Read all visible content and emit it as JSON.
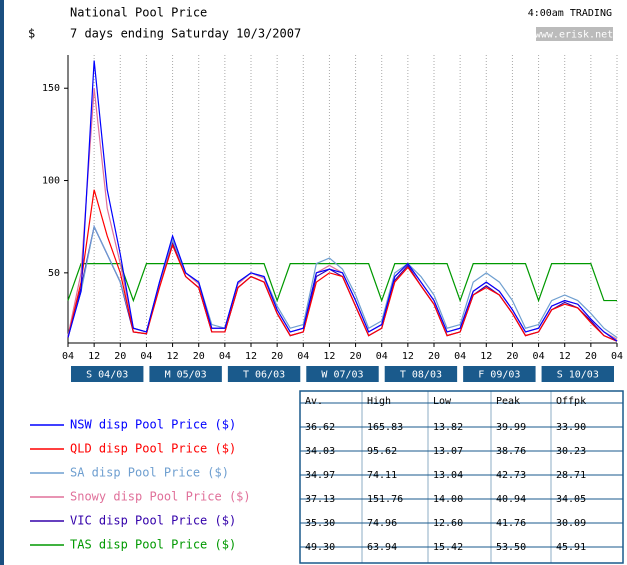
{
  "chart_data": {
    "type": "line",
    "title": "National Pool Price",
    "subtitle": "7 days ending Saturday 10/3/2007",
    "y_label": "$",
    "annotations": [
      "4:00am TRADING",
      "www.erisk.net"
    ],
    "x": [
      0,
      4,
      8,
      12,
      16,
      20,
      24,
      28,
      32,
      36,
      40,
      44,
      48,
      52,
      56,
      60,
      64,
      68,
      72,
      76,
      80,
      84,
      88,
      92,
      96,
      100,
      104,
      108,
      112,
      116,
      120,
      124,
      128,
      132,
      136,
      140,
      144,
      148,
      152,
      156,
      160,
      164,
      168
    ],
    "xlim": [
      0,
      168
    ],
    "xticks": [
      {
        "value": 0,
        "label": "04"
      },
      {
        "value": 8,
        "label": "12"
      },
      {
        "value": 16,
        "label": "20"
      },
      {
        "value": 24,
        "label": "04"
      },
      {
        "value": 32,
        "label": "12"
      },
      {
        "value": 40,
        "label": "20"
      },
      {
        "value": 48,
        "label": "04"
      },
      {
        "value": 56,
        "label": "12"
      },
      {
        "value": 64,
        "label": "20"
      },
      {
        "value": 72,
        "label": "04"
      },
      {
        "value": 80,
        "label": "12"
      },
      {
        "value": 88,
        "label": "20"
      },
      {
        "value": 96,
        "label": "04"
      },
      {
        "value": 104,
        "label": "12"
      },
      {
        "value": 112,
        "label": "20"
      },
      {
        "value": 120,
        "label": "04"
      },
      {
        "value": 128,
        "label": "12"
      },
      {
        "value": 136,
        "label": "20"
      },
      {
        "value": 144,
        "label": "04"
      },
      {
        "value": 152,
        "label": "12"
      },
      {
        "value": 160,
        "label": "20"
      },
      {
        "value": 168,
        "label": "04"
      }
    ],
    "day_labels": [
      "S 04/03",
      "M 05/03",
      "T 06/03",
      "W 07/03",
      "T 08/03",
      "F 09/03",
      "S 10/03"
    ],
    "ylim": [
      12,
      168
    ],
    "yticks": [
      50,
      100,
      150
    ],
    "grid": true,
    "series": [
      {
        "name": "NSW disp Pool Price ($)",
        "color": "#0000ff",
        "values": [
          15,
          40,
          165,
          95,
          60,
          20,
          18,
          45,
          70,
          50,
          45,
          20,
          20,
          45,
          50,
          48,
          30,
          18,
          20,
          50,
          52,
          50,
          35,
          18,
          22,
          48,
          55,
          45,
          35,
          18,
          20,
          40,
          45,
          40,
          30,
          18,
          20,
          32,
          35,
          33,
          25,
          18,
          13
        ]
      },
      {
        "name": "QLD disp Pool Price ($)",
        "color": "#ff0000",
        "values": [
          15,
          45,
          95,
          70,
          50,
          18,
          17,
          42,
          65,
          48,
          42,
          18,
          18,
          42,
          48,
          45,
          28,
          16,
          18,
          45,
          50,
          48,
          32,
          16,
          20,
          45,
          53,
          43,
          33,
          16,
          18,
          38,
          42,
          38,
          28,
          16,
          18,
          30,
          33,
          31,
          23,
          16,
          13
        ]
      },
      {
        "name": "SA disp Pool Price ($)",
        "color": "#6f9fd0",
        "values": [
          16,
          40,
          75,
          60,
          45,
          20,
          18,
          45,
          68,
          50,
          45,
          22,
          20,
          45,
          50,
          48,
          32,
          20,
          22,
          55,
          58,
          52,
          38,
          20,
          24,
          50,
          55,
          48,
          38,
          20,
          22,
          45,
          50,
          45,
          35,
          20,
          22,
          35,
          38,
          35,
          28,
          20,
          15
        ]
      },
      {
        "name": "Snowy disp Pool Price ($)",
        "color": "#e0709a",
        "values": [
          16,
          50,
          150,
          85,
          55,
          20,
          18,
          44,
          68,
          50,
          44,
          20,
          20,
          44,
          50,
          47,
          30,
          18,
          20,
          50,
          54,
          50,
          35,
          18,
          22,
          48,
          55,
          45,
          35,
          18,
          20,
          40,
          45,
          40,
          30,
          18,
          20,
          32,
          35,
          33,
          25,
          18,
          14
        ]
      },
      {
        "name": "VIC disp Pool Price ($)",
        "color": "#3300aa",
        "values": [
          15,
          42,
          75,
          60,
          45,
          18,
          17,
          44,
          66,
          48,
          42,
          18,
          18,
          42,
          48,
          45,
          28,
          16,
          18,
          48,
          52,
          48,
          32,
          16,
          20,
          46,
          54,
          43,
          33,
          16,
          18,
          38,
          43,
          38,
          28,
          16,
          18,
          30,
          34,
          31,
          24,
          16,
          13
        ]
      },
      {
        "name": "TAS disp Pool Price ($)",
        "color": "#009900",
        "values": [
          35,
          55,
          55,
          55,
          55,
          35,
          55,
          55,
          55,
          55,
          55,
          55,
          55,
          55,
          55,
          55,
          35,
          55,
          55,
          55,
          55,
          55,
          55,
          55,
          35,
          55,
          55,
          55,
          55,
          55,
          35,
          55,
          55,
          55,
          55,
          55,
          35,
          55,
          55,
          55,
          55,
          35,
          35
        ]
      }
    ],
    "table": {
      "columns": [
        "Av.",
        "High",
        "Low",
        "Peak",
        "Offpk"
      ],
      "rows": [
        [
          "36.62",
          "165.83",
          "13.82",
          "39.99",
          "33.90"
        ],
        [
          "34.03",
          "95.62",
          "13.07",
          "38.76",
          "30.23"
        ],
        [
          "34.97",
          "74.11",
          "13.04",
          "42.73",
          "28.71"
        ],
        [
          "37.13",
          "151.76",
          "14.00",
          "40.94",
          "34.05"
        ],
        [
          "35.30",
          "74.96",
          "12.60",
          "41.76",
          "30.09"
        ],
        [
          "49.30",
          "63.94",
          "15.42",
          "53.50",
          "45.91"
        ]
      ]
    }
  }
}
